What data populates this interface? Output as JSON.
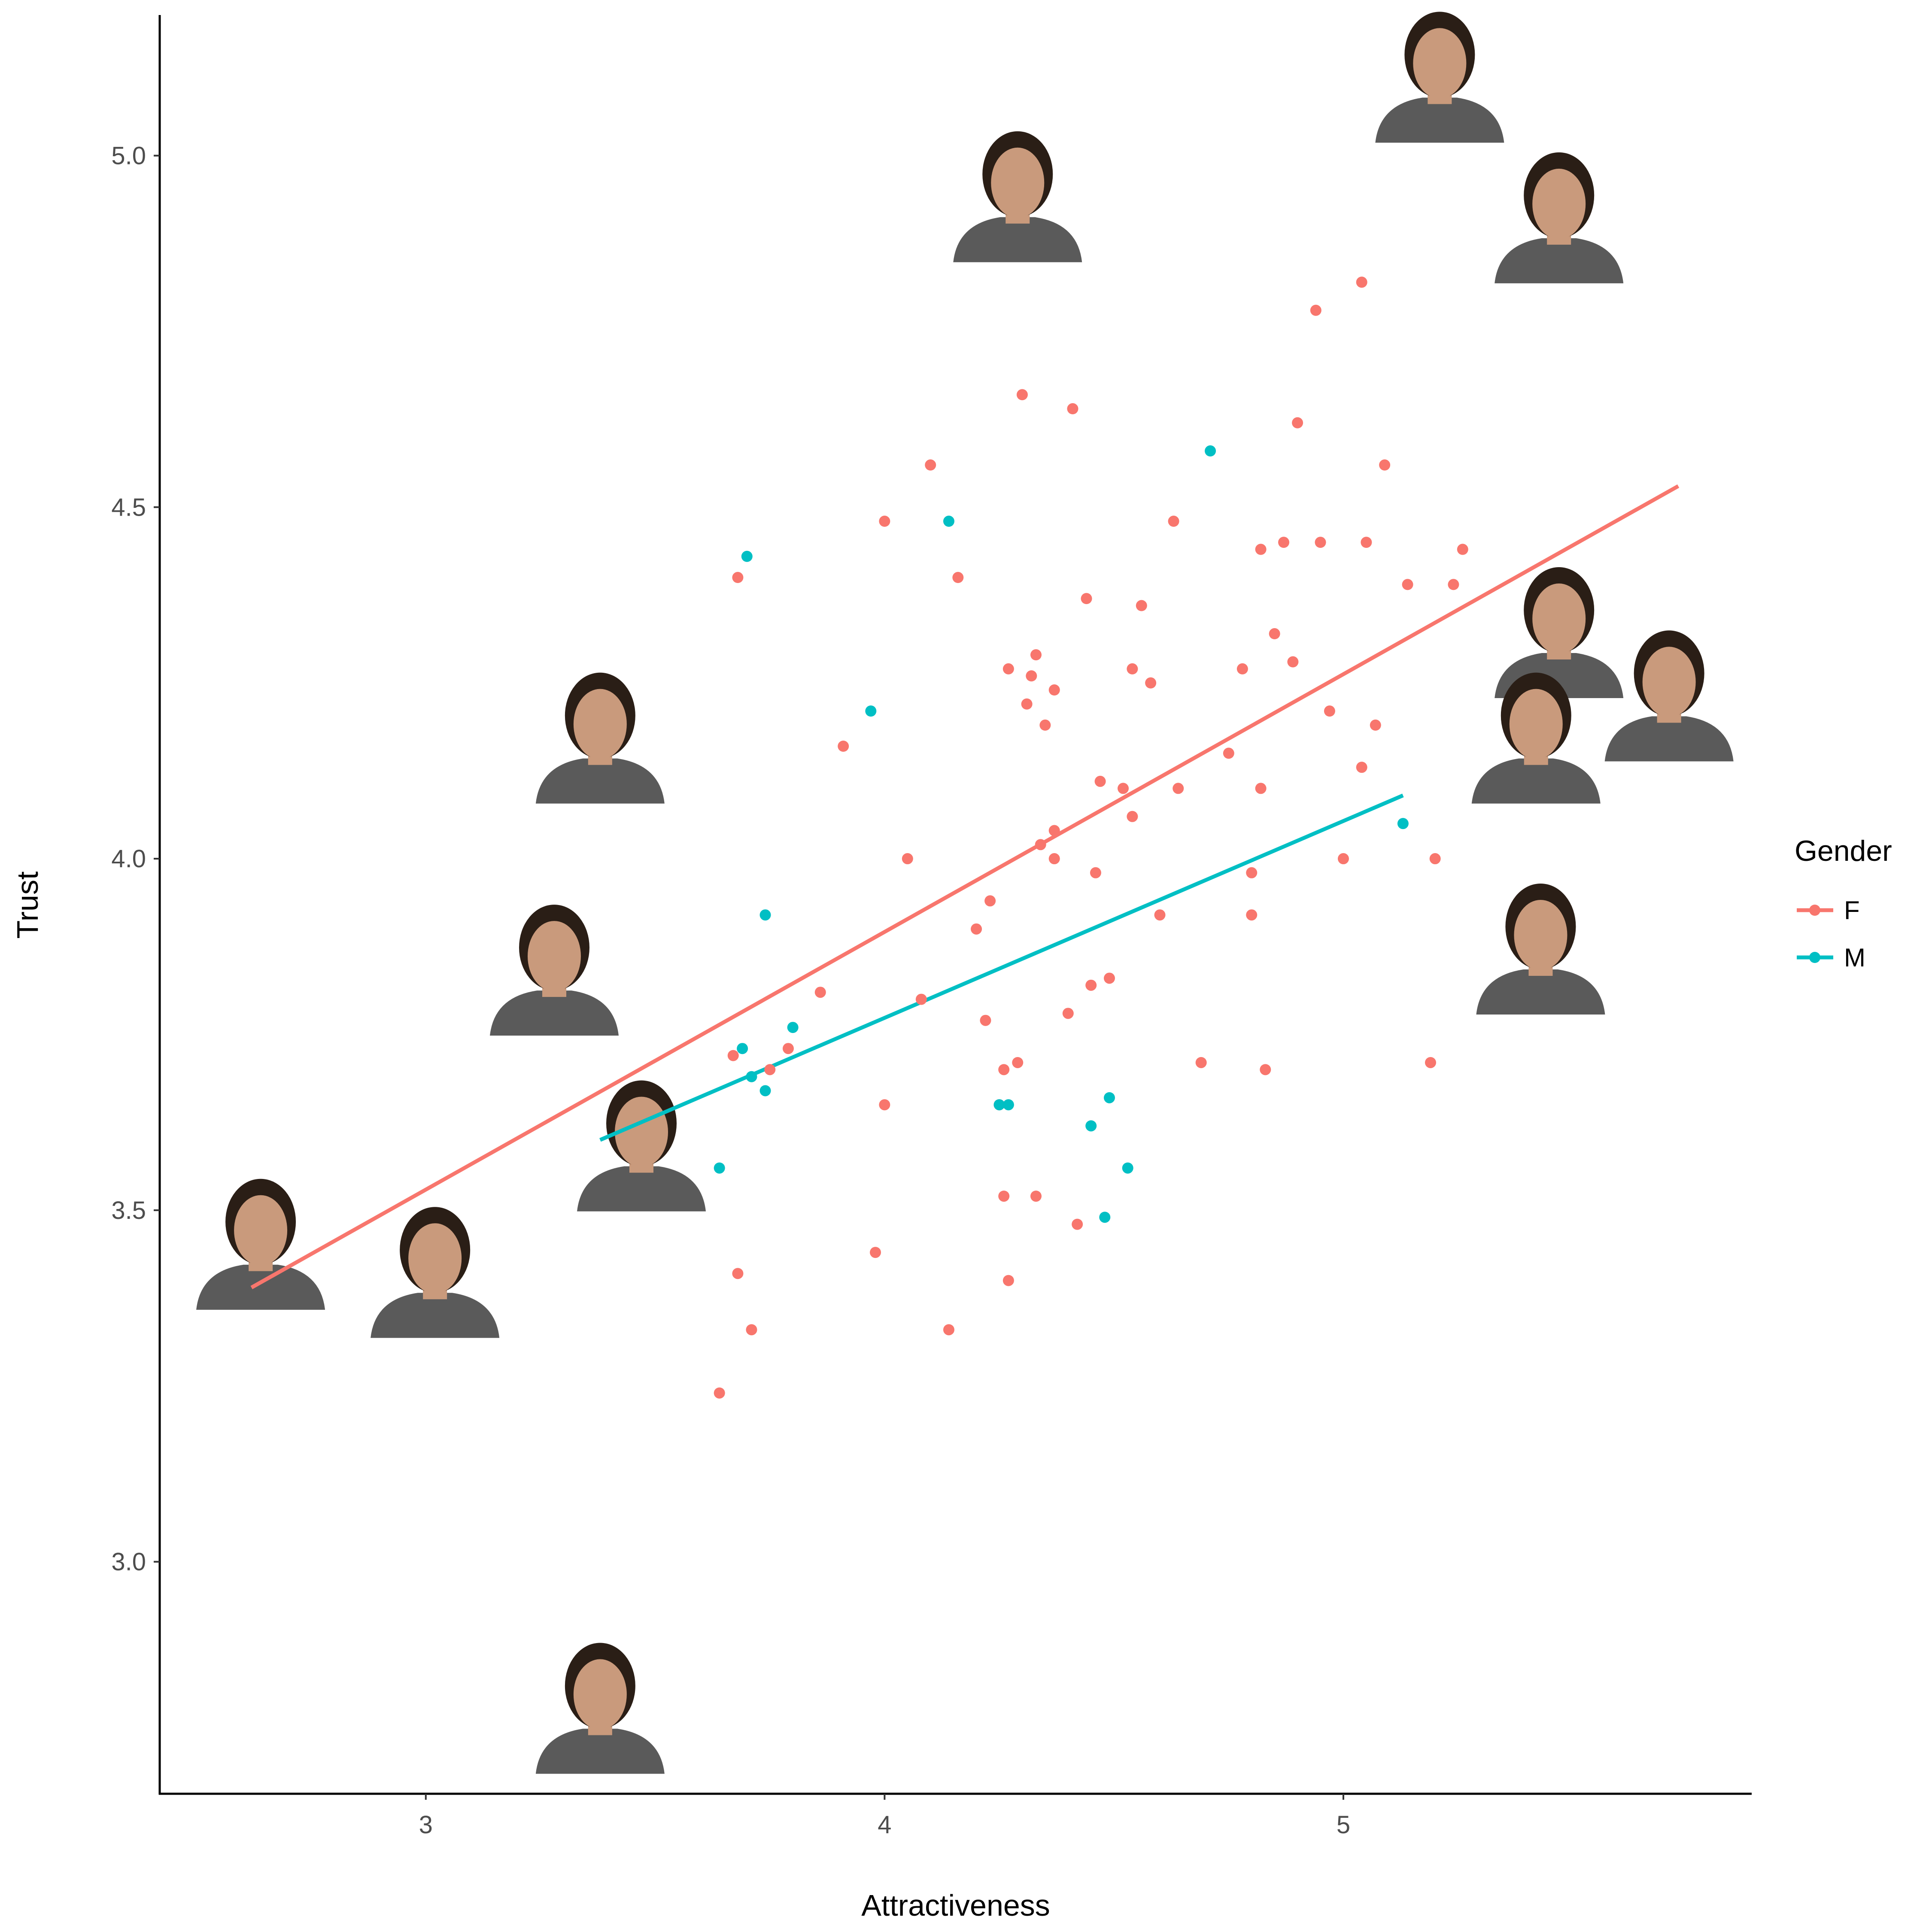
{
  "chart_data": {
    "type": "scatter",
    "xlabel": "Attractiveness",
    "ylabel": "Trust",
    "xlim": [
      2.42,
      5.89
    ],
    "ylim": [
      2.67,
      5.2
    ],
    "xticks": [
      3,
      4,
      5
    ],
    "yticks": [
      3.0,
      3.5,
      4.0,
      4.5,
      5.0
    ],
    "grid": false,
    "legend": {
      "title": "Gender",
      "position": "right"
    },
    "series": [
      {
        "name": "F",
        "color": "#F8766D",
        "points": [
          [
            5.04,
            4.82
          ],
          [
            4.94,
            4.78
          ],
          [
            4.3,
            4.66
          ],
          [
            4.41,
            4.64
          ],
          [
            4.9,
            4.62
          ],
          [
            4.1,
            4.56
          ],
          [
            5.09,
            4.56
          ],
          [
            4.0,
            4.48
          ],
          [
            4.63,
            4.48
          ],
          [
            4.87,
            4.45
          ],
          [
            4.95,
            4.45
          ],
          [
            5.05,
            4.45
          ],
          [
            4.82,
            4.44
          ],
          [
            5.26,
            4.44
          ],
          [
            3.68,
            4.4
          ],
          [
            4.16,
            4.4
          ],
          [
            5.14,
            4.39
          ],
          [
            5.24,
            4.39
          ],
          [
            4.44,
            4.37
          ],
          [
            4.56,
            4.36
          ],
          [
            4.85,
            4.32
          ],
          [
            4.33,
            4.29
          ],
          [
            4.27,
            4.27
          ],
          [
            4.54,
            4.27
          ],
          [
            4.78,
            4.27
          ],
          [
            4.89,
            4.28
          ],
          [
            4.32,
            4.26
          ],
          [
            4.58,
            4.25
          ],
          [
            4.37,
            4.24
          ],
          [
            4.31,
            4.22
          ],
          [
            4.97,
            4.21
          ],
          [
            4.35,
            4.19
          ],
          [
            5.07,
            4.19
          ],
          [
            3.91,
            4.16
          ],
          [
            4.75,
            4.15
          ],
          [
            5.04,
            4.13
          ],
          [
            4.47,
            4.11
          ],
          [
            4.52,
            4.1
          ],
          [
            4.64,
            4.1
          ],
          [
            4.82,
            4.1
          ],
          [
            4.54,
            4.06
          ],
          [
            4.37,
            4.04
          ],
          [
            4.34,
            4.02
          ],
          [
            4.05,
            4.0
          ],
          [
            4.37,
            4.0
          ],
          [
            5.0,
            4.0
          ],
          [
            5.2,
            4.0
          ],
          [
            4.46,
            3.98
          ],
          [
            4.8,
            3.98
          ],
          [
            4.23,
            3.94
          ],
          [
            4.6,
            3.92
          ],
          [
            4.8,
            3.92
          ],
          [
            4.2,
            3.9
          ],
          [
            4.45,
            3.82
          ],
          [
            4.49,
            3.83
          ],
          [
            3.86,
            3.81
          ],
          [
            4.08,
            3.8
          ],
          [
            4.4,
            3.78
          ],
          [
            4.22,
            3.77
          ],
          [
            3.79,
            3.73
          ],
          [
            3.67,
            3.72
          ],
          [
            4.29,
            3.71
          ],
          [
            4.69,
            3.71
          ],
          [
            5.19,
            3.71
          ],
          [
            3.75,
            3.7
          ],
          [
            4.26,
            3.7
          ],
          [
            4.83,
            3.7
          ],
          [
            4.0,
            3.65
          ],
          [
            4.25,
            3.65
          ],
          [
            4.26,
            3.52
          ],
          [
            4.33,
            3.52
          ],
          [
            4.42,
            3.48
          ],
          [
            3.98,
            3.44
          ],
          [
            3.68,
            3.41
          ],
          [
            4.27,
            3.4
          ],
          [
            3.71,
            3.33
          ],
          [
            4.14,
            3.33
          ],
          [
            3.64,
            3.24
          ]
        ],
        "fit": {
          "x": [
            2.62,
            5.73
          ],
          "y": [
            3.39,
            4.53
          ]
        }
      },
      {
        "name": "M",
        "color": "#00BFC4",
        "points": [
          [
            4.71,
            4.58
          ],
          [
            4.14,
            4.48
          ],
          [
            3.7,
            4.43
          ],
          [
            3.97,
            4.21
          ],
          [
            5.13,
            4.05
          ],
          [
            3.74,
            3.92
          ],
          [
            3.8,
            3.76
          ],
          [
            3.69,
            3.73
          ],
          [
            3.71,
            3.69
          ],
          [
            3.74,
            3.67
          ],
          [
            4.49,
            3.66
          ],
          [
            4.25,
            3.65
          ],
          [
            4.27,
            3.65
          ],
          [
            4.45,
            3.62
          ],
          [
            3.64,
            3.56
          ],
          [
            4.53,
            3.56
          ],
          [
            4.48,
            3.49
          ]
        ],
        "fit": {
          "x": [
            3.38,
            5.13
          ],
          "y": [
            3.6,
            4.09
          ]
        }
      }
    ],
    "face_images": [
      {
        "x": 2.64,
        "y": 3.45
      },
      {
        "x": 3.02,
        "y": 3.41
      },
      {
        "x": 3.47,
        "y": 3.59
      },
      {
        "x": 3.28,
        "y": 3.84
      },
      {
        "x": 3.38,
        "y": 4.17
      },
      {
        "x": 4.29,
        "y": 4.94
      },
      {
        "x": 5.21,
        "y": 5.11
      },
      {
        "x": 5.47,
        "y": 4.91
      },
      {
        "x": 5.47,
        "y": 4.32
      },
      {
        "x": 5.42,
        "y": 4.17
      },
      {
        "x": 5.71,
        "y": 4.23
      },
      {
        "x": 5.43,
        "y": 3.87
      },
      {
        "x": 3.38,
        "y": 2.79
      }
    ]
  }
}
